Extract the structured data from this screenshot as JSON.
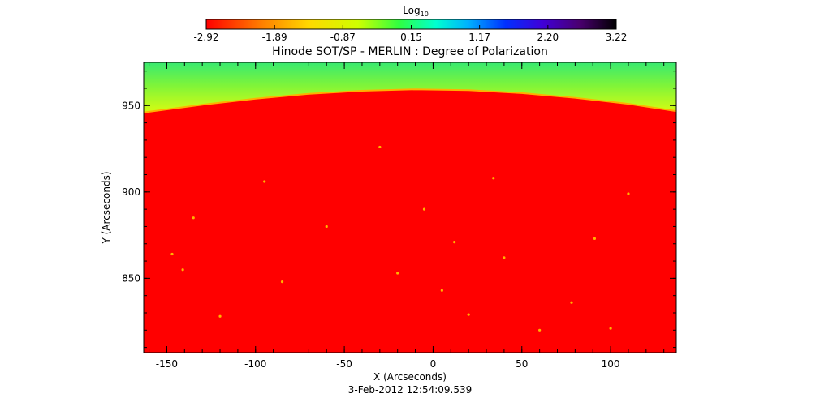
{
  "colorbar": {
    "label": "Log",
    "label_sub": "10",
    "ticks": [
      "-2.92",
      "-1.89",
      "-0.87",
      "0.15",
      "1.17",
      "2.20",
      "3.22"
    ],
    "range": [
      -2.92,
      3.22
    ]
  },
  "chart_data": {
    "type": "heatmap",
    "title": "Hinode SOT/SP - MERLIN : Degree of Polarization",
    "xlabel": "X (Arcseconds)",
    "ylabel": "Y (Arcseconds)",
    "footer": "3-Feb-2012 12:54:09.539",
    "x_ticks": [
      "-150",
      "-100",
      "-50",
      "0",
      "50",
      "100"
    ],
    "y_ticks": [
      "950",
      "900",
      "850"
    ],
    "xlim": [
      -163,
      137
    ],
    "ylim": [
      807,
      975
    ],
    "limb": {
      "description_value": "solar limb boundary, y in arcsec at x",
      "x": [
        -163,
        -130,
        -100,
        -70,
        -40,
        -10,
        20,
        50,
        80,
        110,
        137
      ],
      "y": [
        946,
        950.5,
        954,
        956.8,
        958.6,
        959.4,
        958.9,
        957.2,
        954.5,
        951.0,
        946.8
      ]
    },
    "disk_value_log10": -2.92,
    "offlimb_value_log10_range": [
      -2.0,
      0.3
    ],
    "features": [
      {
        "x": 12,
        "y": 871
      },
      {
        "x": 91,
        "y": 873
      },
      {
        "x": 34,
        "y": 908
      },
      {
        "x": -147,
        "y": 864
      },
      {
        "x": -141,
        "y": 855
      },
      {
        "x": -95,
        "y": 906
      },
      {
        "x": -20,
        "y": 853
      },
      {
        "x": 20,
        "y": 829
      },
      {
        "x": 60,
        "y": 820
      },
      {
        "x": -120,
        "y": 828
      },
      {
        "x": -60,
        "y": 880
      },
      {
        "x": 78,
        "y": 836
      },
      {
        "x": -85,
        "y": 848
      },
      {
        "x": 110,
        "y": 899
      },
      {
        "x": -30,
        "y": 926
      },
      {
        "x": 5,
        "y": 843
      },
      {
        "x": -135,
        "y": 885
      },
      {
        "x": 100,
        "y": 821
      },
      {
        "x": 40,
        "y": 862
      },
      {
        "x": -5,
        "y": 890
      }
    ]
  }
}
